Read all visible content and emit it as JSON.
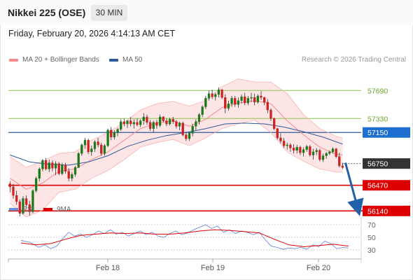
{
  "header": {
    "title": "Nikkei 225 (OSE)",
    "timeframe": "30 MIN"
  },
  "datetime": "Friday, February 20, 2026 4:14:13 AM CET",
  "legend": [
    {
      "label": "MA 20 + Bollinger Bands",
      "color": "#f28c8c"
    },
    {
      "label": "MA 50",
      "color": "#2d5a9b"
    }
  ],
  "credit": "Research © 2026 Trading Central",
  "colors": {
    "up": "#1a7a1a",
    "down": "#cc2222",
    "resistance": "#8bc34a",
    "support": "#dd0000",
    "ma50": "#2d5a9b",
    "ma20": "#f28c8c",
    "band_fill": "#fde0e0",
    "current": "#333333",
    "arrow": "#2060a8"
  },
  "chart_data": {
    "type": "candlestick",
    "x_ticks": [
      "Feb 18",
      "Feb 19",
      "Feb 20"
    ],
    "ylim": [
      55990,
      57990
    ],
    "levels": [
      {
        "label": "57690",
        "value": 57690,
        "kind": "resistance"
      },
      {
        "label": "57330",
        "value": 57330,
        "kind": "resistance"
      },
      {
        "label": "57150",
        "value": 57150,
        "kind": "pivot"
      },
      {
        "label": "56750",
        "value": 56750,
        "kind": "current"
      },
      {
        "label": "56470",
        "value": 56470,
        "kind": "support"
      },
      {
        "label": "56140",
        "value": 56140,
        "kind": "support"
      }
    ],
    "candles": [
      [
        56490,
        56520,
        56380,
        56450
      ],
      [
        56450,
        56490,
        56300,
        56340
      ],
      [
        56340,
        56400,
        56220,
        56260
      ],
      [
        56260,
        56290,
        56070,
        56110
      ],
      [
        56110,
        56330,
        56090,
        56300
      ],
      [
        56300,
        56340,
        56180,
        56220
      ],
      [
        56220,
        56270,
        56080,
        56130
      ],
      [
        56130,
        56420,
        56110,
        56400
      ],
      [
        56400,
        56580,
        56380,
        56560
      ],
      [
        56560,
        56700,
        56520,
        56680
      ],
      [
        56680,
        56810,
        56650,
        56790
      ],
      [
        56790,
        56820,
        56660,
        56680
      ],
      [
        56680,
        56800,
        56640,
        56760
      ],
      [
        56760,
        56790,
        56650,
        56690
      ],
      [
        56690,
        56780,
        56600,
        56750
      ],
      [
        56750,
        56770,
        56600,
        56620
      ],
      [
        56620,
        56760,
        56600,
        56730
      ],
      [
        56730,
        56760,
        56620,
        56650
      ],
      [
        56650,
        56690,
        56520,
        56560
      ],
      [
        56560,
        56640,
        56520,
        56610
      ],
      [
        56610,
        56720,
        56580,
        56700
      ],
      [
        56700,
        56900,
        56690,
        56880
      ],
      [
        56880,
        57010,
        56850,
        56990
      ],
      [
        56990,
        57080,
        56940,
        57050
      ],
      [
        57050,
        57070,
        56870,
        56900
      ],
      [
        56900,
        56980,
        56850,
        56940
      ],
      [
        56940,
        57050,
        56900,
        57030
      ],
      [
        57030,
        57080,
        56960,
        56990
      ],
      [
        56990,
        57020,
        56850,
        56880
      ],
      [
        56880,
        57000,
        56850,
        56980
      ],
      [
        56980,
        57200,
        56960,
        57180
      ],
      [
        57180,
        57220,
        57050,
        57090
      ],
      [
        57090,
        57180,
        57060,
        57150
      ],
      [
        57150,
        57210,
        57100,
        57190
      ],
      [
        57190,
        57320,
        57170,
        57290
      ],
      [
        57290,
        57330,
        57230,
        57260
      ],
      [
        57260,
        57310,
        57210,
        57300
      ],
      [
        57300,
        57350,
        57230,
        57260
      ],
      [
        57260,
        57320,
        57200,
        57280
      ],
      [
        57280,
        57330,
        57230,
        57250
      ],
      [
        57250,
        57320,
        57220,
        57300
      ],
      [
        57300,
        57400,
        57250,
        57350
      ],
      [
        57350,
        57380,
        57250,
        57280
      ],
      [
        57280,
        57310,
        57170,
        57200
      ],
      [
        57200,
        57300,
        57150,
        57280
      ],
      [
        57280,
        57310,
        57200,
        57240
      ],
      [
        57240,
        57380,
        57220,
        57350
      ],
      [
        57350,
        57360,
        57280,
        57300
      ],
      [
        57300,
        57330,
        57230,
        57260
      ],
      [
        57260,
        57340,
        57240,
        57320
      ],
      [
        57320,
        57350,
        57260,
        57290
      ],
      [
        57290,
        57310,
        57200,
        57230
      ],
      [
        57230,
        57290,
        57180,
        57270
      ],
      [
        57270,
        57290,
        57100,
        57120
      ],
      [
        57120,
        57160,
        57040,
        57070
      ],
      [
        57070,
        57160,
        57040,
        57140
      ],
      [
        57140,
        57260,
        57100,
        57230
      ],
      [
        57230,
        57320,
        57180,
        57290
      ],
      [
        57290,
        57400,
        57250,
        57380
      ],
      [
        57380,
        57500,
        57350,
        57480
      ],
      [
        57480,
        57620,
        57450,
        57590
      ],
      [
        57590,
        57690,
        57560,
        57650
      ],
      [
        57650,
        57700,
        57580,
        57610
      ],
      [
        57610,
        57660,
        57560,
        57640
      ],
      [
        57640,
        57730,
        57600,
        57700
      ],
      [
        57700,
        57710,
        57580,
        57600
      ],
      [
        57600,
        57640,
        57400,
        57460
      ],
      [
        57460,
        57560,
        57430,
        57520
      ],
      [
        57520,
        57620,
        57480,
        57590
      ],
      [
        57590,
        57620,
        57480,
        57510
      ],
      [
        57510,
        57600,
        57470,
        57560
      ],
      [
        57560,
        57640,
        57520,
        57610
      ],
      [
        57610,
        57660,
        57500,
        57530
      ],
      [
        57530,
        57620,
        57500,
        57590
      ],
      [
        57590,
        57660,
        57540,
        57600
      ],
      [
        57600,
        57650,
        57500,
        57540
      ],
      [
        57540,
        57640,
        57520,
        57620
      ],
      [
        57620,
        57680,
        57570,
        57600
      ],
      [
        57600,
        57610,
        57500,
        57540
      ],
      [
        57540,
        57580,
        57400,
        57440
      ],
      [
        57440,
        57460,
        57300,
        57330
      ],
      [
        57330,
        57340,
        57180,
        57200
      ],
      [
        57200,
        57210,
        57060,
        57080
      ],
      [
        57080,
        57140,
        57010,
        57040
      ],
      [
        57040,
        57080,
        56950,
        56980
      ],
      [
        56980,
        57020,
        56930,
        56990
      ],
      [
        56990,
        57010,
        56900,
        56950
      ],
      [
        56950,
        57000,
        56880,
        56920
      ],
      [
        56920,
        56990,
        56880,
        56960
      ],
      [
        56960,
        56980,
        56860,
        56890
      ],
      [
        56890,
        56960,
        56840,
        56930
      ],
      [
        56930,
        56990,
        56900,
        56970
      ],
      [
        56970,
        56990,
        56840,
        56860
      ],
      [
        56860,
        56940,
        56800,
        56900
      ],
      [
        56900,
        56950,
        56860,
        56920
      ],
      [
        56920,
        56940,
        56780,
        56800
      ],
      [
        56800,
        56880,
        56770,
        56850
      ],
      [
        56850,
        56900,
        56810,
        56880
      ],
      [
        56880,
        56920,
        56860,
        56900
      ],
      [
        56900,
        56960,
        56880,
        56940
      ],
      [
        56940,
        56950,
        56820,
        56840
      ],
      [
        56840,
        56890,
        56700,
        56720
      ],
      [
        56720,
        56760,
        56680,
        56700
      ]
    ],
    "ma50": [
      [
        0,
        56860
      ],
      [
        6,
        56770
      ],
      [
        12,
        56740
      ],
      [
        18,
        56730
      ],
      [
        24,
        56770
      ],
      [
        30,
        56850
      ],
      [
        36,
        56970
      ],
      [
        42,
        57050
      ],
      [
        48,
        57110
      ],
      [
        54,
        57150
      ],
      [
        60,
        57200
      ],
      [
        66,
        57260
      ],
      [
        72,
        57270
      ],
      [
        78,
        57260
      ],
      [
        84,
        57220
      ],
      [
        90,
        57160
      ],
      [
        96,
        57090
      ],
      [
        102,
        57000
      ]
    ],
    "ma20": [
      [
        0,
        56560
      ],
      [
        5,
        56420
      ],
      [
        10,
        56500
      ],
      [
        15,
        56650
      ],
      [
        20,
        56680
      ],
      [
        25,
        56800
      ],
      [
        30,
        56900
      ],
      [
        35,
        57050
      ],
      [
        40,
        57200
      ],
      [
        45,
        57270
      ],
      [
        50,
        57300
      ],
      [
        55,
        57230
      ],
      [
        60,
        57320
      ],
      [
        65,
        57470
      ],
      [
        70,
        57530
      ],
      [
        75,
        57560
      ],
      [
        80,
        57520
      ],
      [
        85,
        57300
      ],
      [
        90,
        57120
      ],
      [
        95,
        56960
      ],
      [
        100,
        56870
      ],
      [
        102,
        56860
      ]
    ],
    "bb_upper": [
      [
        0,
        56840
      ],
      [
        5,
        56700
      ],
      [
        10,
        56780
      ],
      [
        15,
        56880
      ],
      [
        20,
        56900
      ],
      [
        25,
        57050
      ],
      [
        30,
        57150
      ],
      [
        35,
        57280
      ],
      [
        40,
        57440
      ],
      [
        45,
        57520
      ],
      [
        50,
        57550
      ],
      [
        55,
        57490
      ],
      [
        60,
        57560
      ],
      [
        65,
        57740
      ],
      [
        70,
        57840
      ],
      [
        75,
        57800
      ],
      [
        80,
        57800
      ],
      [
        85,
        57650
      ],
      [
        90,
        57380
      ],
      [
        95,
        57200
      ],
      [
        100,
        57100
      ],
      [
        102,
        57080
      ]
    ],
    "bb_lower": [
      [
        0,
        56240
      ],
      [
        5,
        56060
      ],
      [
        10,
        56150
      ],
      [
        15,
        56380
      ],
      [
        20,
        56420
      ],
      [
        25,
        56560
      ],
      [
        30,
        56660
      ],
      [
        35,
        56800
      ],
      [
        40,
        56960
      ],
      [
        45,
        57020
      ],
      [
        50,
        57060
      ],
      [
        55,
        56980
      ],
      [
        60,
        57080
      ],
      [
        65,
        57200
      ],
      [
        70,
        57260
      ],
      [
        75,
        57310
      ],
      [
        80,
        57150
      ],
      [
        85,
        56900
      ],
      [
        90,
        56780
      ],
      [
        95,
        56680
      ],
      [
        100,
        56640
      ],
      [
        102,
        56640
      ]
    ],
    "projection": {
      "from": 56760,
      "to": 56160
    },
    "rsi": {
      "legend": [
        {
          "label": "RSI",
          "color": "#6e8fd8"
        },
        {
          "label": "9MA",
          "color": "#dd0000"
        }
      ],
      "levels": [
        70,
        50,
        30
      ],
      "ylim": [
        20,
        80
      ],
      "rsi": [
        [
          0,
          45
        ],
        [
          3,
          42
        ],
        [
          6,
          34
        ],
        [
          8,
          38
        ],
        [
          10,
          32
        ],
        [
          12,
          36
        ],
        [
          14,
          48
        ],
        [
          16,
          58
        ],
        [
          18,
          52
        ],
        [
          20,
          55
        ],
        [
          22,
          50
        ],
        [
          24,
          54
        ],
        [
          26,
          60
        ],
        [
          28,
          56
        ],
        [
          30,
          62
        ],
        [
          32,
          55
        ],
        [
          34,
          58
        ],
        [
          36,
          52
        ],
        [
          38,
          56
        ],
        [
          40,
          60
        ],
        [
          42,
          54
        ],
        [
          44,
          58
        ],
        [
          46,
          52
        ],
        [
          48,
          50
        ],
        [
          50,
          56
        ],
        [
          52,
          60
        ],
        [
          54,
          54
        ],
        [
          56,
          57
        ],
        [
          58,
          62
        ],
        [
          60,
          66
        ],
        [
          62,
          70
        ],
        [
          64,
          64
        ],
        [
          66,
          68
        ],
        [
          68,
          58
        ],
        [
          70,
          62
        ],
        [
          72,
          56
        ],
        [
          74,
          60
        ],
        [
          76,
          58
        ],
        [
          78,
          54
        ],
        [
          80,
          58
        ],
        [
          82,
          46
        ],
        [
          84,
          36
        ],
        [
          86,
          34
        ],
        [
          88,
          31
        ],
        [
          90,
          33
        ],
        [
          92,
          32
        ],
        [
          94,
          34
        ],
        [
          96,
          31
        ],
        [
          98,
          38
        ],
        [
          100,
          35
        ],
        [
          102,
          44
        ],
        [
          104,
          40
        ],
        [
          106,
          32
        ],
        [
          108,
          34
        ],
        [
          110,
          33
        ]
      ],
      "ma": [
        [
          0,
          41
        ],
        [
          5,
          38
        ],
        [
          10,
          40
        ],
        [
          15,
          47
        ],
        [
          20,
          53
        ],
        [
          25,
          55
        ],
        [
          30,
          57
        ],
        [
          35,
          56
        ],
        [
          40,
          57
        ],
        [
          45,
          55
        ],
        [
          50,
          55
        ],
        [
          55,
          57
        ],
        [
          60,
          60
        ],
        [
          65,
          62
        ],
        [
          70,
          61
        ],
        [
          75,
          59
        ],
        [
          80,
          57
        ],
        [
          85,
          47
        ],
        [
          90,
          38
        ],
        [
          95,
          35
        ],
        [
          100,
          37
        ],
        [
          105,
          39
        ],
        [
          110,
          36
        ]
      ]
    }
  }
}
